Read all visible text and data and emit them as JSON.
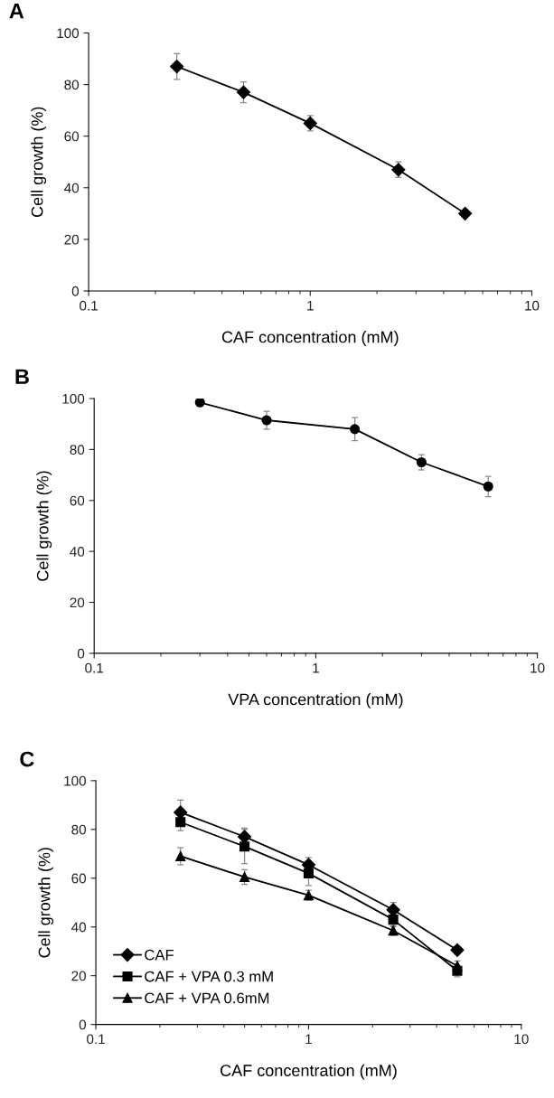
{
  "chart_data": [
    {
      "type": "line",
      "title": "A",
      "xlabel": "CAF concentration (mM)",
      "ylabel": "Cell growth (%)",
      "log": "x",
      "xlim": [
        0.1,
        10
      ],
      "xticks": [
        0.1,
        1,
        10
      ],
      "ylim": [
        0,
        100
      ],
      "yticks": [
        0,
        20,
        40,
        60,
        80,
        100
      ],
      "grid": false,
      "legend": false,
      "line_style": "solid",
      "series": [
        {
          "color": "#000000",
          "marker": "diamond",
          "x": [
            0.25,
            0.5,
            1,
            2.5,
            5
          ],
          "values": [
            87,
            77,
            65,
            47,
            30
          ],
          "errors": [
            5,
            4,
            3,
            3,
            null
          ]
        }
      ]
    },
    {
      "type": "line",
      "title": "B",
      "xlabel": "VPA concentration (mM)",
      "ylabel": "Cell growth (%)",
      "log": "x",
      "xlim": [
        0.1,
        10
      ],
      "xticks": [
        0.1,
        1,
        10
      ],
      "ylim": [
        0,
        100
      ],
      "yticks": [
        0,
        20,
        40,
        60,
        80,
        100
      ],
      "grid": false,
      "legend": false,
      "line_style": "solid",
      "series": [
        {
          "color": "#000000",
          "marker": "circle",
          "x": [
            0.3,
            0.6,
            1.5,
            3,
            6
          ],
          "values": [
            98.5,
            91.5,
            88,
            75,
            65.5
          ],
          "errors": [
            null,
            3.5,
            4.5,
            3,
            4
          ]
        }
      ]
    },
    {
      "type": "line",
      "title": "C",
      "xlabel": "CAF concentration (mM)",
      "ylabel": "Cell growth (%)",
      "log": "x",
      "xlim": [
        0.1,
        10
      ],
      "xticks": [
        0.1,
        1,
        10
      ],
      "ylim": [
        0,
        100
      ],
      "yticks": [
        0,
        20,
        40,
        60,
        80,
        100
      ],
      "grid": false,
      "legend": "lower left",
      "line_style": "solid",
      "series": [
        {
          "name": "CAF",
          "color": "#000000",
          "marker": "diamond",
          "x": [
            0.25,
            0.5,
            1,
            2.5,
            5
          ],
          "values": [
            87,
            77,
            65.5,
            47,
            30.5
          ],
          "errors": [
            5,
            3.5,
            3,
            3,
            null
          ]
        },
        {
          "name": "CAF + VPA 0.3 mM",
          "color": "#000000",
          "marker": "square",
          "x": [
            0.25,
            0.5,
            1,
            2.5,
            5
          ],
          "values": [
            83,
            73,
            62,
            43,
            22
          ],
          "errors": [
            3.5,
            7,
            5,
            3,
            2.5
          ]
        },
        {
          "name": "CAF + VPA 0.6mM",
          "color": "#000000",
          "marker": "triangle",
          "x": [
            0.25,
            0.5,
            1,
            2.5,
            5
          ],
          "values": [
            69,
            60.5,
            53,
            38.5,
            24
          ],
          "errors": [
            3.5,
            3,
            2,
            2,
            2
          ]
        }
      ]
    }
  ]
}
